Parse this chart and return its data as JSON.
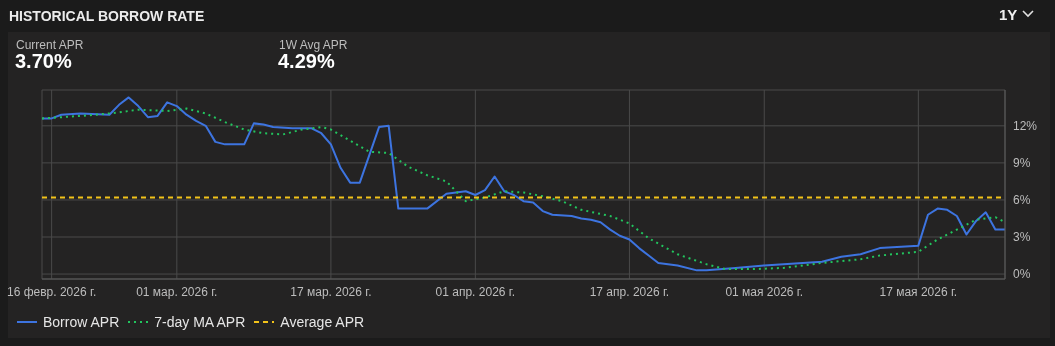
{
  "chart_data": {
    "type": "line",
    "title": "HISTORICAL BORROW RATE",
    "annotations": [
      "1Y",
      "Current APR",
      "3.70%",
      "1W Avg APR",
      "4.29%"
    ],
    "series": [
      {
        "name": "Borrow APR",
        "color": "#3d74e0",
        "line_style": "solid",
        "x": [
          "2026-02-15",
          "2026-02-16",
          "2026-02-17",
          "2026-02-19",
          "2026-02-22",
          "2026-02-23",
          "2026-02-24",
          "2026-02-25",
          "2026-02-26",
          "2026-02-27",
          "2026-02-28",
          "2026-03-01",
          "2026-03-02",
          "2026-03-03",
          "2026-03-04",
          "2026-03-05",
          "2026-03-06",
          "2026-03-08",
          "2026-03-09",
          "2026-03-10",
          "2026-03-11",
          "2026-03-13",
          "2026-03-15",
          "2026-03-16",
          "2026-03-17",
          "2026-03-18",
          "2026-03-19",
          "2026-03-20",
          "2026-03-22",
          "2026-03-23",
          "2026-03-24",
          "2026-03-27",
          "2026-03-29",
          "2026-03-31",
          "2026-04-01",
          "2026-04-02",
          "2026-04-03",
          "2026-04-04",
          "2026-04-05",
          "2026-04-06",
          "2026-04-07",
          "2026-04-08",
          "2026-04-09",
          "2026-04-11",
          "2026-04-12",
          "2026-04-13",
          "2026-04-14",
          "2026-04-15",
          "2026-04-16",
          "2026-04-17",
          "2026-04-18",
          "2026-04-19",
          "2026-04-20",
          "2026-04-22",
          "2026-04-24",
          "2026-04-25",
          "2026-04-28",
          "2026-05-01",
          "2026-05-05",
          "2026-05-07",
          "2026-05-09",
          "2026-05-11",
          "2026-05-13",
          "2026-05-17",
          "2026-05-18",
          "2026-05-19",
          "2026-05-20",
          "2026-05-21",
          "2026-05-22",
          "2026-05-23",
          "2026-05-24",
          "2026-05-25",
          "2026-05-26"
        ],
        "values": [
          12.6,
          12.6,
          12.9,
          13.0,
          12.9,
          13.7,
          14.3,
          13.6,
          12.7,
          12.8,
          13.9,
          13.6,
          12.9,
          12.4,
          12.0,
          10.7,
          10.5,
          10.5,
          12.2,
          12.1,
          11.9,
          11.8,
          11.8,
          11.4,
          10.5,
          8.6,
          7.4,
          7.4,
          11.9,
          12.0,
          5.3,
          5.3,
          6.5,
          6.7,
          6.4,
          6.8,
          7.9,
          6.7,
          6.4,
          5.9,
          5.8,
          5.1,
          4.8,
          4.7,
          4.5,
          4.4,
          4.2,
          3.6,
          3.1,
          2.8,
          2.1,
          1.5,
          0.9,
          0.7,
          0.3,
          0.3,
          0.5,
          0.7,
          0.9,
          1.0,
          1.4,
          1.6,
          2.1,
          2.3,
          4.8,
          5.3,
          5.2,
          4.7,
          3.2,
          4.3,
          5.0,
          3.6,
          3.6
        ]
      },
      {
        "name": "7-day MA APR",
        "color": "#22c55e",
        "line_style": "dotted",
        "x": [
          "2026-02-15",
          "2026-02-19",
          "2026-02-22",
          "2026-02-25",
          "2026-02-28",
          "2026-03-02",
          "2026-03-04",
          "2026-03-06",
          "2026-03-08",
          "2026-03-10",
          "2026-03-12",
          "2026-03-14",
          "2026-03-16",
          "2026-03-17",
          "2026-03-19",
          "2026-03-21",
          "2026-03-23",
          "2026-03-25",
          "2026-03-27",
          "2026-03-29",
          "2026-03-30",
          "2026-03-31",
          "2026-04-02",
          "2026-04-04",
          "2026-04-06",
          "2026-04-08",
          "2026-04-10",
          "2026-04-12",
          "2026-04-15",
          "2026-04-17",
          "2026-04-19",
          "2026-04-22",
          "2026-04-25",
          "2026-04-27",
          "2026-04-30",
          "2026-05-03",
          "2026-05-07",
          "2026-05-11",
          "2026-05-13",
          "2026-05-17",
          "2026-05-19",
          "2026-05-21",
          "2026-05-23",
          "2026-05-25",
          "2026-05-26"
        ],
        "values": [
          12.6,
          12.8,
          13.0,
          13.3,
          13.2,
          13.4,
          13.0,
          12.3,
          11.7,
          11.4,
          11.3,
          11.7,
          11.9,
          11.7,
          10.8,
          9.9,
          9.8,
          8.7,
          8.0,
          7.5,
          6.7,
          5.9,
          6.2,
          6.7,
          6.6,
          6.3,
          5.9,
          5.2,
          4.7,
          4.1,
          2.9,
          1.6,
          0.8,
          0.4,
          0.4,
          0.5,
          0.9,
          1.2,
          1.5,
          1.8,
          2.8,
          3.6,
          4.4,
          4.6,
          4.2
        ]
      },
      {
        "name": "Average APR",
        "color": "#f2c31a",
        "line_style": "dashed",
        "x": [
          "2026-02-15",
          "2026-05-26"
        ],
        "values": [
          6.2,
          6.2
        ]
      }
    ],
    "xlim": [
      "2026-02-15",
      "2026-05-26"
    ],
    "xticks": [
      {
        "value": "2026-02-16",
        "label": "16 февр. 2026 г."
      },
      {
        "value": "2026-03-01",
        "label": "01 мар. 2026 г."
      },
      {
        "value": "2026-03-17",
        "label": "17 мар. 2026 г."
      },
      {
        "value": "2026-04-01",
        "label": "01 апр. 2026 г."
      },
      {
        "value": "2026-04-17",
        "label": "17 апр. 2026 г."
      },
      {
        "value": "2026-05-01",
        "label": "01 мая 2026 г."
      },
      {
        "value": "2026-05-17",
        "label": "17 мая 2026 г."
      }
    ],
    "ylim": [
      -0.4,
      14.9
    ],
    "yticks": [
      {
        "value": 0,
        "label": "0%"
      },
      {
        "value": 3,
        "label": "3%"
      },
      {
        "value": 6,
        "label": "6%"
      },
      {
        "value": 9,
        "label": "9%"
      },
      {
        "value": 12,
        "label": "12%"
      }
    ],
    "grid": true,
    "legend": "bottom left",
    "marker": "none"
  }
}
